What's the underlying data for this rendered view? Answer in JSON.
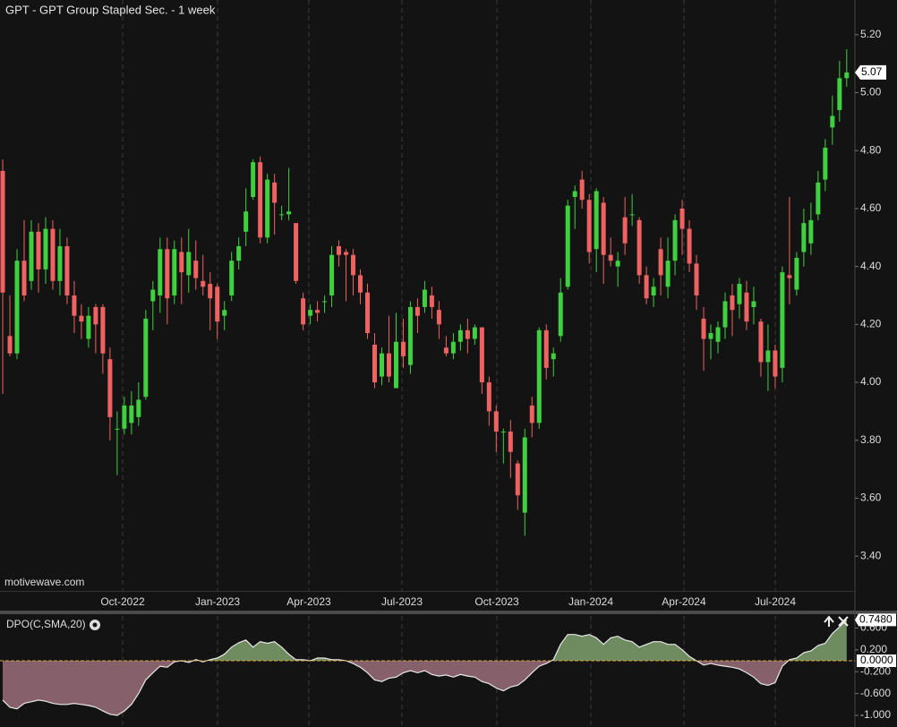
{
  "chart_data": [
    {
      "type": "candlestick",
      "title": "GPT - GPT Group Stapled Sec. - 1 week",
      "watermark": "motivewave.com",
      "up_color": "#3fd03f",
      "down_color": "#f06262",
      "grid": true,
      "xlim": [
        -0.38,
        119.15
      ],
      "ylim": [
        3.28,
        5.32
      ],
      "yticks": [
        {
          "value": 3.4,
          "label": "3.40"
        },
        {
          "value": 3.6,
          "label": "3.60"
        },
        {
          "value": 3.8,
          "label": "3.80"
        },
        {
          "value": 4.0,
          "label": "4.00"
        },
        {
          "value": 4.2,
          "label": "4.20"
        },
        {
          "value": 4.4,
          "label": "4.40"
        },
        {
          "value": 4.6,
          "label": "4.60"
        },
        {
          "value": 4.8,
          "label": "4.80"
        },
        {
          "value": 5.0,
          "label": "5.00"
        },
        {
          "value": 5.2,
          "label": "5.20"
        }
      ],
      "xticks": [
        {
          "value": 16.77,
          "label": "Oct-2022"
        },
        {
          "value": 30.04,
          "label": "Jan-2023"
        },
        {
          "value": 42.8,
          "label": "Apr-2023"
        },
        {
          "value": 55.82,
          "label": "Jul-2023"
        },
        {
          "value": 69.09,
          "label": "Oct-2023"
        },
        {
          "value": 82.23,
          "label": "Jan-2024"
        },
        {
          "value": 95.24,
          "label": "Apr-2024"
        },
        {
          "value": 108.01,
          "label": "Jul-2024"
        }
      ],
      "open": [
        4.73,
        4.16,
        4.1,
        4.42,
        4.35,
        4.52,
        4.39,
        4.53,
        4.35,
        4.47,
        4.3,
        4.23,
        4.15,
        4.26,
        4.26,
        4.08,
        3.84,
        3.84,
        3.86,
        3.88,
        3.95,
        4.28,
        4.3,
        4.46,
        4.3,
        4.45,
        4.37,
        4.42,
        4.35,
        4.34,
        4.33,
        4.23,
        4.3,
        4.42,
        4.52,
        4.64,
        4.76,
        4.5,
        4.69,
        4.58,
        4.58,
        4.55,
        4.29,
        4.23,
        4.25,
        4.28,
        4.3,
        4.47,
        4.45,
        4.44,
        4.37,
        4.31,
        4.13,
        4.02,
        4.1,
        3.98,
        4.14,
        4.06,
        4.26,
        4.26,
        4.3,
        4.25,
        4.12,
        4.1,
        4.14,
        4.18,
        4.15,
        4.19,
        4.0,
        3.9,
        3.83,
        3.83,
        3.72,
        3.55,
        3.92,
        3.86,
        4.18,
        4.08,
        4.16,
        4.33,
        4.64,
        4.7,
        4.63,
        4.46,
        4.62,
        4.44,
        4.4,
        4.57,
        4.58,
        4.56,
        4.37,
        4.3,
        4.46,
        4.33,
        4.42,
        4.6,
        4.53,
        4.41,
        4.22,
        4.15,
        4.14,
        4.19,
        4.3,
        4.27,
        4.31,
        4.26,
        4.21,
        4.07,
        4.11,
        4.05,
        4.37,
        4.32,
        4.45,
        4.48,
        4.58,
        4.7,
        4.88,
        4.94,
        5.05
      ],
      "high": [
        4.77,
        4.3,
        4.46,
        4.56,
        4.56,
        4.55,
        4.57,
        4.56,
        4.53,
        4.5,
        4.35,
        4.27,
        4.26,
        4.27,
        4.27,
        4.12,
        3.9,
        3.95,
        3.97,
        4.0,
        4.25,
        4.35,
        4.5,
        4.5,
        4.49,
        4.5,
        4.53,
        4.49,
        4.44,
        4.38,
        4.34,
        4.28,
        4.45,
        4.5,
        4.67,
        4.77,
        4.78,
        4.72,
        4.72,
        4.61,
        4.74,
        4.55,
        4.31,
        4.27,
        4.28,
        4.3,
        4.47,
        4.49,
        4.46,
        4.46,
        4.39,
        4.34,
        4.17,
        4.12,
        4.23,
        4.24,
        4.22,
        4.28,
        4.29,
        4.35,
        4.33,
        4.28,
        4.16,
        4.17,
        4.2,
        4.22,
        4.2,
        4.19,
        4.02,
        3.92,
        3.84,
        3.87,
        3.73,
        3.84,
        3.95,
        4.19,
        4.2,
        4.12,
        4.36,
        4.63,
        4.68,
        4.73,
        4.65,
        4.67,
        4.64,
        4.5,
        4.45,
        4.64,
        4.65,
        4.57,
        4.4,
        4.36,
        4.5,
        4.5,
        4.58,
        4.63,
        4.56,
        4.44,
        4.26,
        4.2,
        4.21,
        4.31,
        4.34,
        4.36,
        4.35,
        4.33,
        4.22,
        4.2,
        4.13,
        4.4,
        4.64,
        4.45,
        4.6,
        4.62,
        4.73,
        4.84,
        4.99,
        5.11,
        5.15
      ],
      "low": [
        3.96,
        4.09,
        4.08,
        4.28,
        4.32,
        4.31,
        4.34,
        4.32,
        4.3,
        4.27,
        4.17,
        4.15,
        4.12,
        4.1,
        4.03,
        3.8,
        3.68,
        3.82,
        3.82,
        3.85,
        3.94,
        4.18,
        4.24,
        4.2,
        4.27,
        4.27,
        4.31,
        4.32,
        4.3,
        4.18,
        4.15,
        4.18,
        4.28,
        4.39,
        4.47,
        4.63,
        4.48,
        4.48,
        4.51,
        4.56,
        4.56,
        4.34,
        4.18,
        4.2,
        4.21,
        4.24,
        4.26,
        4.4,
        4.28,
        4.3,
        4.27,
        4.15,
        3.98,
        3.99,
        4.0,
        3.98,
        4.05,
        4.03,
        4.17,
        4.24,
        4.22,
        4.15,
        4.09,
        4.08,
        4.11,
        4.1,
        4.13,
        3.96,
        3.85,
        3.76,
        3.72,
        3.67,
        3.56,
        3.47,
        3.81,
        3.84,
        4.01,
        4.02,
        4.14,
        4.32,
        4.53,
        4.6,
        4.41,
        4.38,
        4.34,
        4.4,
        4.33,
        4.44,
        4.54,
        4.34,
        4.27,
        4.26,
        4.3,
        4.29,
        4.37,
        4.44,
        4.38,
        4.25,
        4.04,
        4.08,
        4.1,
        4.15,
        4.16,
        4.22,
        4.18,
        4.2,
        4.02,
        3.97,
        3.98,
        4.0,
        4.27,
        4.3,
        4.4,
        4.44,
        4.56,
        4.66,
        4.82,
        4.9,
        5.02
      ],
      "close": [
        4.31,
        4.1,
        4.42,
        4.3,
        4.52,
        4.39,
        4.53,
        4.35,
        4.47,
        4.3,
        4.23,
        4.21,
        4.23,
        4.2,
        4.1,
        3.88,
        3.84,
        3.92,
        3.92,
        3.94,
        4.22,
        4.32,
        4.46,
        4.29,
        4.46,
        4.38,
        4.45,
        4.36,
        4.33,
        4.29,
        4.21,
        4.25,
        4.42,
        4.47,
        4.59,
        4.76,
        4.5,
        4.7,
        4.62,
        4.58,
        4.59,
        4.35,
        4.2,
        4.25,
        4.24,
        4.28,
        4.44,
        4.44,
        4.44,
        4.37,
        4.31,
        4.17,
        4.0,
        4.1,
        4.02,
        4.14,
        4.09,
        4.26,
        4.23,
        4.32,
        4.26,
        4.2,
        4.1,
        4.14,
        4.18,
        4.15,
        4.19,
        4.0,
        3.9,
        3.83,
        3.83,
        3.76,
        3.61,
        3.81,
        3.86,
        4.18,
        4.05,
        4.1,
        4.31,
        4.61,
        4.66,
        4.63,
        4.45,
        4.66,
        4.44,
        4.42,
        4.42,
        4.48,
        4.58,
        4.37,
        4.29,
        4.33,
        4.37,
        4.42,
        4.56,
        4.53,
        4.41,
        4.3,
        4.15,
        4.17,
        4.19,
        4.28,
        4.25,
        4.34,
        4.21,
        4.28,
        4.07,
        4.11,
        4.02,
        4.38,
        4.36,
        4.43,
        4.55,
        4.56,
        4.69,
        4.81,
        4.92,
        5.05,
        5.07
      ]
    },
    {
      "type": "area",
      "title": "DPO(C,SMA,20)",
      "color": "#e8e8e8",
      "pos_color": "#6e8c60",
      "neg_color": "#86606a",
      "ylim": [
        -1.18,
        0.82
      ],
      "yticks": [
        {
          "value": 0.6,
          "label": "0.600"
        },
        {
          "value": 0.2,
          "label": "0.200"
        },
        {
          "value": -0.2,
          "label": "-0.200"
        },
        {
          "value": -0.6,
          "label": "-0.600"
        },
        {
          "value": -1.0,
          "label": "-1.000"
        }
      ],
      "zero_line": {
        "value": 0,
        "label": "0.0000"
      },
      "last_label": "0.7480",
      "values": [
        -0.72,
        -0.85,
        -0.88,
        -0.78,
        -0.75,
        -0.72,
        -0.74,
        -0.78,
        -0.8,
        -0.8,
        -0.78,
        -0.8,
        -0.82,
        -0.85,
        -0.92,
        -0.98,
        -1.0,
        -0.92,
        -0.8,
        -0.6,
        -0.35,
        -0.22,
        -0.1,
        -0.12,
        -0.02,
        0.0,
        -0.03,
        0.02,
        -0.02,
        0.02,
        0.05,
        0.12,
        0.25,
        0.33,
        0.38,
        0.25,
        0.35,
        0.32,
        0.35,
        0.25,
        0.12,
        0.02,
        0.02,
        0.0,
        0.05,
        0.05,
        0.02,
        0.02,
        0.0,
        -0.05,
        -0.12,
        -0.22,
        -0.35,
        -0.38,
        -0.32,
        -0.3,
        -0.22,
        -0.18,
        -0.22,
        -0.18,
        -0.25,
        -0.28,
        -0.26,
        -0.3,
        -0.25,
        -0.28,
        -0.3,
        -0.38,
        -0.42,
        -0.5,
        -0.55,
        -0.48,
        -0.45,
        -0.35,
        -0.22,
        -0.1,
        -0.05,
        0.02,
        0.3,
        0.48,
        0.48,
        0.45,
        0.48,
        0.42,
        0.3,
        0.42,
        0.45,
        0.38,
        0.35,
        0.25,
        0.3,
        0.35,
        0.35,
        0.3,
        0.3,
        0.2,
        0.08,
        0.0,
        -0.08,
        -0.05,
        -0.08,
        -0.1,
        -0.12,
        -0.15,
        -0.22,
        -0.3,
        -0.42,
        -0.45,
        -0.4,
        -0.1,
        0.02,
        0.05,
        0.15,
        0.18,
        0.28,
        0.32,
        0.5,
        0.62,
        0.748
      ]
    }
  ]
}
